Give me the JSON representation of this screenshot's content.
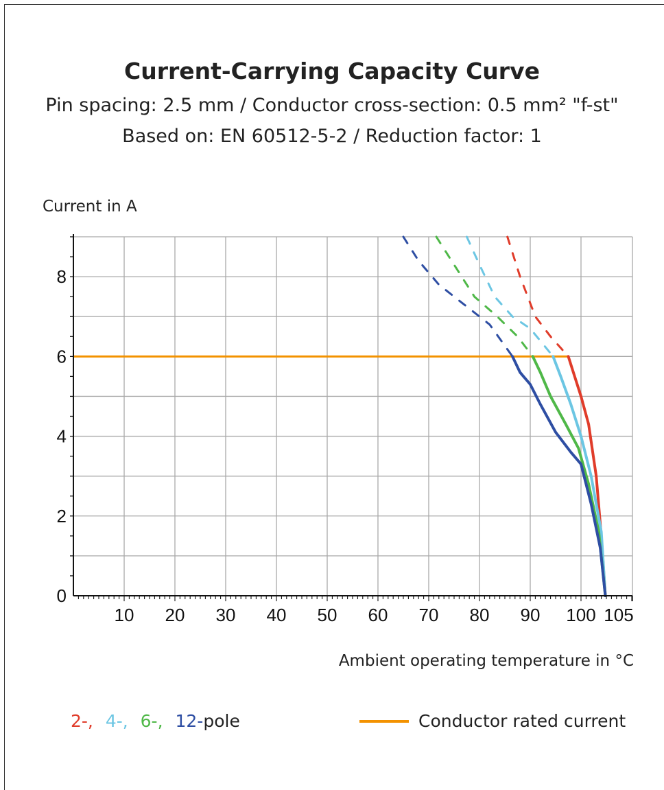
{
  "chart_data": {
    "type": "line",
    "title": "Current-Carrying Capacity Curve",
    "subtitle_lines": [
      "Pin spacing: 2.5 mm / Conductor cross-section: 0.5 mm² \"f-st\"",
      "Based on: EN 60512-5-2 / Reduction factor: 1"
    ],
    "xlabel": "Ambient operating temperature in °C",
    "ylabel": "Current in A",
    "xlim": [
      0,
      105
    ],
    "ylim": [
      0,
      9
    ],
    "x_ticks": [
      10,
      20,
      30,
      40,
      50,
      60,
      70,
      80,
      90,
      100,
      105
    ],
    "y_ticks": [
      0,
      2,
      4,
      6,
      8
    ],
    "grid": true,
    "rated_current": {
      "name": "Conductor rated current",
      "value": 6,
      "color": "#f39200"
    },
    "series": [
      {
        "name": "2-",
        "color": "#e03c2a",
        "solid": [
          [
            97.5,
            6
          ],
          [
            98.5,
            5.6
          ],
          [
            100,
            5
          ],
          [
            101.5,
            4.3
          ],
          [
            103,
            3
          ],
          [
            104,
            1.5
          ],
          [
            104.8,
            0
          ]
        ],
        "dashed": [
          [
            85.5,
            9
          ],
          [
            88,
            8
          ],
          [
            91,
            7
          ],
          [
            94,
            6.5
          ],
          [
            97.5,
            6
          ]
        ]
      },
      {
        "name": "4-",
        "color": "#6cc6e3",
        "solid": [
          [
            94.5,
            6
          ],
          [
            96,
            5.5
          ],
          [
            98,
            4.8
          ],
          [
            100,
            4
          ],
          [
            102,
            3
          ],
          [
            104,
            1.6
          ],
          [
            104.8,
            0
          ]
        ],
        "dashed": [
          [
            77.5,
            9
          ],
          [
            80,
            8.3
          ],
          [
            83,
            7.5
          ],
          [
            86.5,
            7
          ],
          [
            90,
            6.7
          ],
          [
            94.5,
            6
          ]
        ]
      },
      {
        "name": "6-",
        "color": "#4fb848",
        "solid": [
          [
            90.5,
            6
          ],
          [
            92,
            5.6
          ],
          [
            94,
            5
          ],
          [
            97,
            4.3
          ],
          [
            99.5,
            3.7
          ],
          [
            101.5,
            2.8
          ],
          [
            103.5,
            1.6
          ],
          [
            104.8,
            0
          ]
        ],
        "dashed": [
          [
            71.5,
            9
          ],
          [
            75,
            8.3
          ],
          [
            79,
            7.5
          ],
          [
            83.5,
            7
          ],
          [
            87.5,
            6.5
          ],
          [
            90.5,
            6
          ]
        ]
      },
      {
        "name": "12-",
        "color": "#2e4ea3",
        "solid": [
          [
            86.5,
            6
          ],
          [
            88,
            5.6
          ],
          [
            90,
            5.3
          ],
          [
            92,
            4.8
          ],
          [
            95,
            4.1
          ],
          [
            98,
            3.6
          ],
          [
            100,
            3.3
          ],
          [
            102,
            2.3
          ],
          [
            103.8,
            1.2
          ],
          [
            104.8,
            0
          ]
        ],
        "dashed": [
          [
            65,
            9
          ],
          [
            68,
            8.4
          ],
          [
            72,
            7.8
          ],
          [
            77,
            7.3
          ],
          [
            82,
            6.8
          ],
          [
            86.5,
            6
          ]
        ]
      }
    ]
  },
  "legend": {
    "poles": [
      "2-,",
      "4-,",
      "6-,",
      "12-"
    ],
    "pole_suffix": "pole",
    "rated_label": "Conductor rated current"
  }
}
